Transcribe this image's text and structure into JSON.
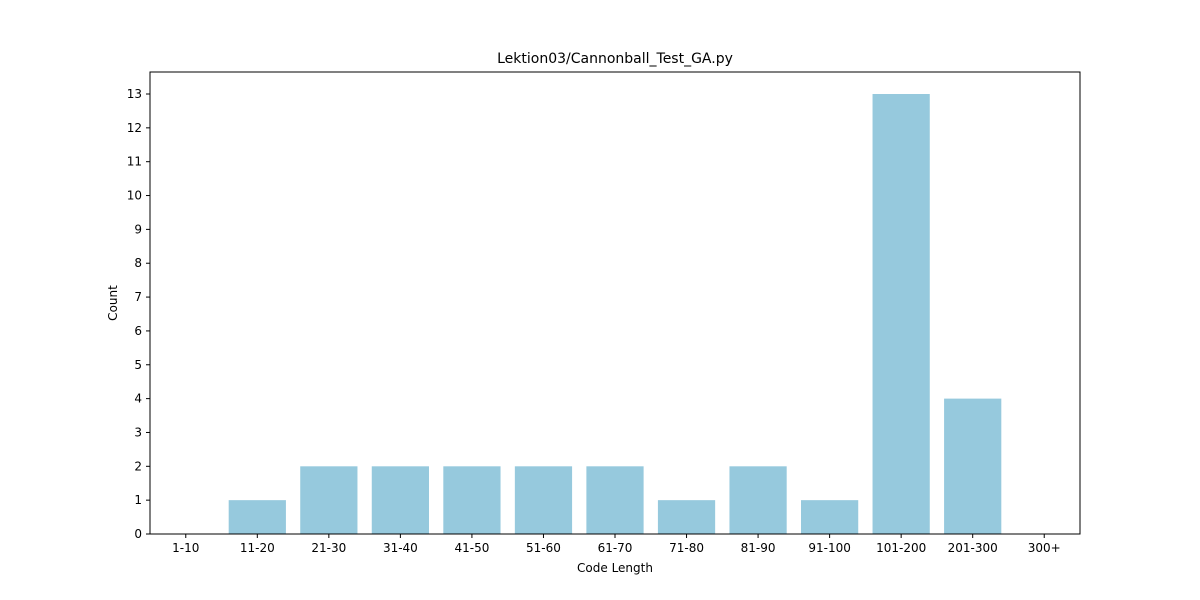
{
  "chart_data": {
    "type": "bar",
    "title": "Lektion03/Cannonball_Test_GA.py",
    "xlabel": "Code Length",
    "ylabel": "Count",
    "categories": [
      "1-10",
      "11-20",
      "21-30",
      "31-40",
      "41-50",
      "51-60",
      "61-70",
      "71-80",
      "81-90",
      "91-100",
      "101-200",
      "201-300",
      "300+"
    ],
    "values": [
      0,
      1,
      2,
      2,
      2,
      2,
      2,
      1,
      2,
      1,
      13,
      4,
      0
    ],
    "ylim": [
      0,
      13.65
    ],
    "yticks": [
      0,
      1,
      2,
      3,
      4,
      5,
      6,
      7,
      8,
      9,
      10,
      11,
      12,
      13
    ],
    "bar_color": "#96c9dd",
    "grid": false,
    "legend": "none"
  }
}
